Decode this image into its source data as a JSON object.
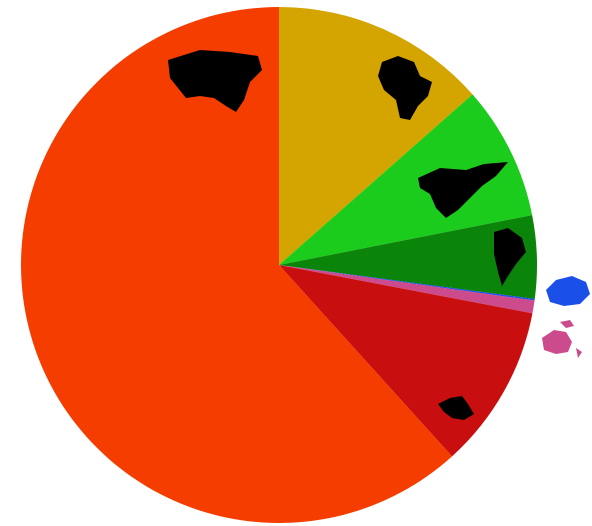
{
  "chart_data": {
    "type": "pie",
    "values": [
      13.5,
      8.4,
      5.2,
      0.1,
      0.8,
      10.3,
      61.7
    ],
    "colors": [
      "#d4a500",
      "#1ccc1c",
      "#0a850a",
      "#1a4fe8",
      "#cc4b8c",
      "#c80e0e",
      "#f53d00"
    ]
  }
}
